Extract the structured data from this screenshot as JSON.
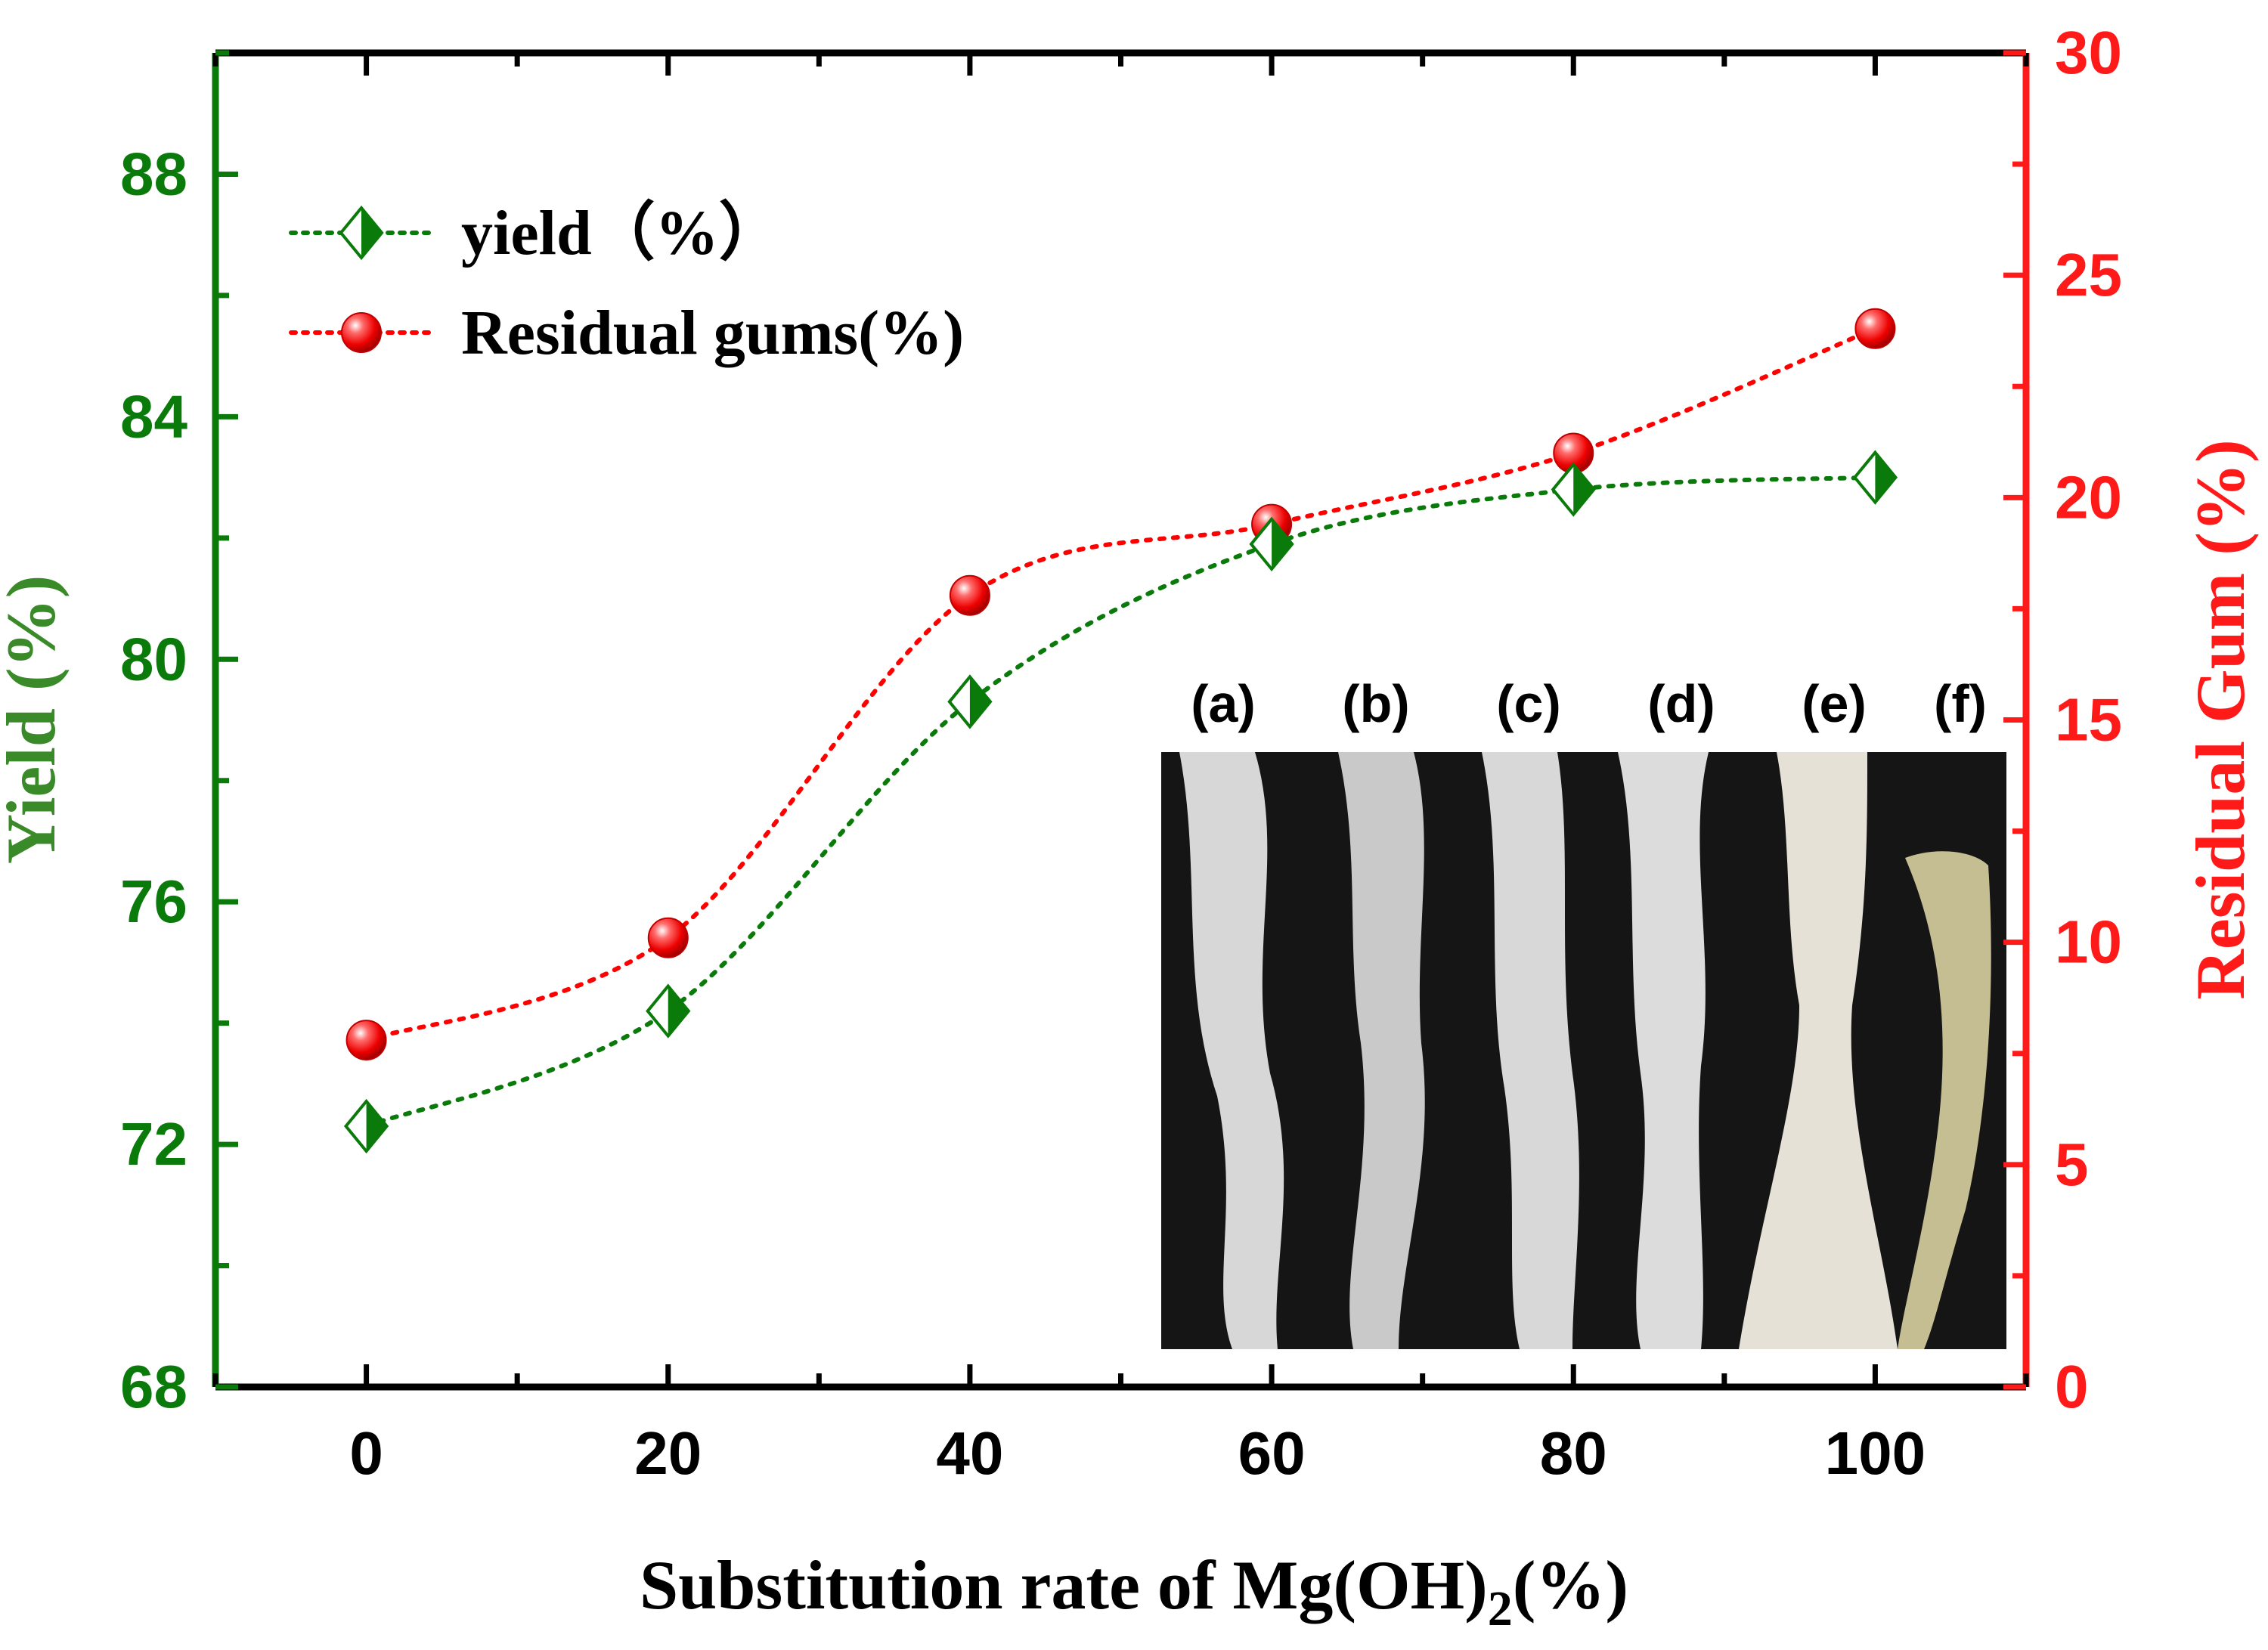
{
  "chart_data": {
    "type": "line",
    "title": "",
    "xlabel": "Substitution rate of Mg(OH)",
    "xlabel_subscript": "2",
    "xlabel_suffix": "(%)",
    "ylabel_left": "Yield (%)",
    "ylabel_right": "Residual Gum (%)",
    "x": [
      0,
      20,
      40,
      60,
      80,
      100
    ],
    "xlim": [
      -10,
      110
    ],
    "ylim_left": [
      68,
      90
    ],
    "ylim_right": [
      0,
      30
    ],
    "x_ticks": [
      "0",
      "20",
      "40",
      "60",
      "80",
      "100"
    ],
    "y_left_ticks": [
      "68",
      "72",
      "76",
      "80",
      "84",
      "88"
    ],
    "y_right_ticks": [
      "0",
      "5",
      "10",
      "15",
      "20",
      "25",
      "30"
    ],
    "legend_position": "top-left",
    "series": [
      {
        "name": "yield（%）",
        "axis": "left",
        "color": "#0a7a0a",
        "marker": "half-filled-diamond",
        "line_style": "dotted",
        "values": [
          72.3,
          74.2,
          79.3,
          81.9,
          82.8,
          83.0
        ]
      },
      {
        "name": "Residual gums(%)",
        "axis": "right",
        "color": "#ff0000",
        "marker": "filled-circle",
        "line_style": "dotted",
        "values": [
          7.8,
          10.1,
          17.8,
          19.4,
          21.0,
          23.8
        ]
      }
    ],
    "inset": {
      "description_labels": [
        "(a)",
        "(b)",
        "(c)",
        "(d)",
        "(e)",
        "(f)"
      ]
    },
    "colors": {
      "left_axis": "#0a7a0a",
      "right_axis": "#ff1a1a",
      "frame": "#000000"
    }
  }
}
